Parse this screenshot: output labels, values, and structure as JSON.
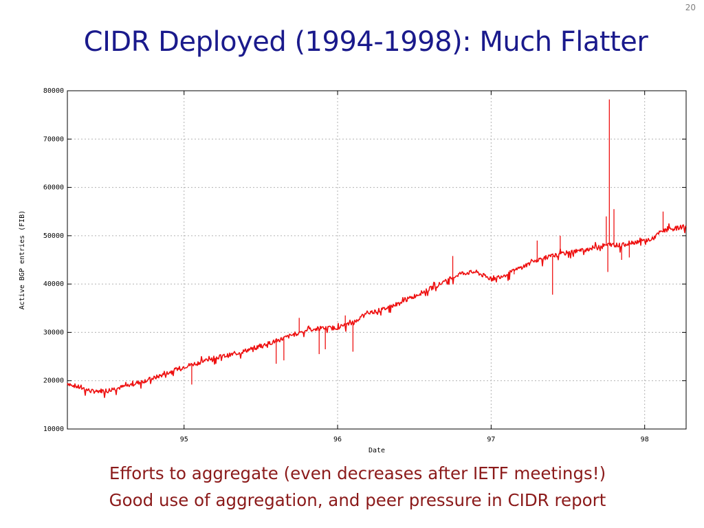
{
  "slide": {
    "number": "20",
    "title": "CIDR Deployed (1994-1998): Much Flatter",
    "caption_lines": [
      "Efforts to aggregate (even decreases after IETF meetings!)",
      "Good use of aggregation, and peer pressure in CIDR report"
    ]
  },
  "chart_data": {
    "type": "line",
    "title": "",
    "xlabel": "Date",
    "ylabel": "Active BGP entries (FIB)",
    "x_tick_labels": [
      "95",
      "96",
      "97",
      "98"
    ],
    "x_ticks": [
      1995,
      1996,
      1997,
      1998
    ],
    "xlim": [
      1994.24,
      1998.27
    ],
    "ylim": [
      10000,
      80000
    ],
    "y_ticks": [
      10000,
      20000,
      30000,
      40000,
      50000,
      60000,
      70000,
      80000
    ],
    "grid": true,
    "line_color": "#ee1111",
    "series": [
      {
        "x": [
          1994.24,
          1994.3,
          1994.4,
          1994.5,
          1994.6,
          1994.7,
          1994.8,
          1994.9,
          1995.0,
          1995.1,
          1995.2,
          1995.3,
          1995.4,
          1995.5,
          1995.6,
          1995.7,
          1995.8,
          1995.9,
          1996.0,
          1996.1,
          1996.2,
          1996.3,
          1996.4,
          1996.5,
          1996.6,
          1996.7,
          1996.8,
          1996.9,
          1997.0,
          1997.1,
          1997.2,
          1997.3,
          1997.4,
          1997.5,
          1997.6,
          1997.7,
          1997.78,
          1997.85,
          1997.9,
          1998.0,
          1998.05,
          1998.1,
          1998.15,
          1998.2,
          1998.27
        ],
        "y": [
          19500,
          18800,
          17800,
          18000,
          18700,
          19600,
          20500,
          21700,
          22900,
          23800,
          24800,
          25300,
          26200,
          27200,
          28200,
          29400,
          30500,
          30800,
          31000,
          32000,
          34000,
          34800,
          36000,
          37500,
          39000,
          40500,
          42200,
          42500,
          41000,
          42000,
          43500,
          45000,
          45800,
          46500,
          47000,
          47800,
          48200,
          48000,
          48500,
          49000,
          49300,
          50700,
          51200,
          51500,
          52000
        ]
      }
    ],
    "spikes": [
      {
        "x": 1995.05,
        "y": 19200
      },
      {
        "x": 1995.6,
        "y": 23500
      },
      {
        "x": 1995.65,
        "y": 24200
      },
      {
        "x": 1995.75,
        "y": 33000
      },
      {
        "x": 1995.88,
        "y": 25500
      },
      {
        "x": 1995.92,
        "y": 26500
      },
      {
        "x": 1996.05,
        "y": 33500
      },
      {
        "x": 1996.1,
        "y": 26000
      },
      {
        "x": 1996.75,
        "y": 45800
      },
      {
        "x": 1997.15,
        "y": 42000
      },
      {
        "x": 1997.3,
        "y": 49000
      },
      {
        "x": 1997.4,
        "y": 37800
      },
      {
        "x": 1997.45,
        "y": 50000
      },
      {
        "x": 1997.77,
        "y": 78200
      },
      {
        "x": 1997.75,
        "y": 54000
      },
      {
        "x": 1997.76,
        "y": 42500
      },
      {
        "x": 1997.8,
        "y": 55500
      },
      {
        "x": 1997.85,
        "y": 45000
      },
      {
        "x": 1997.9,
        "y": 45500
      },
      {
        "x": 1998.12,
        "y": 55000
      }
    ]
  }
}
